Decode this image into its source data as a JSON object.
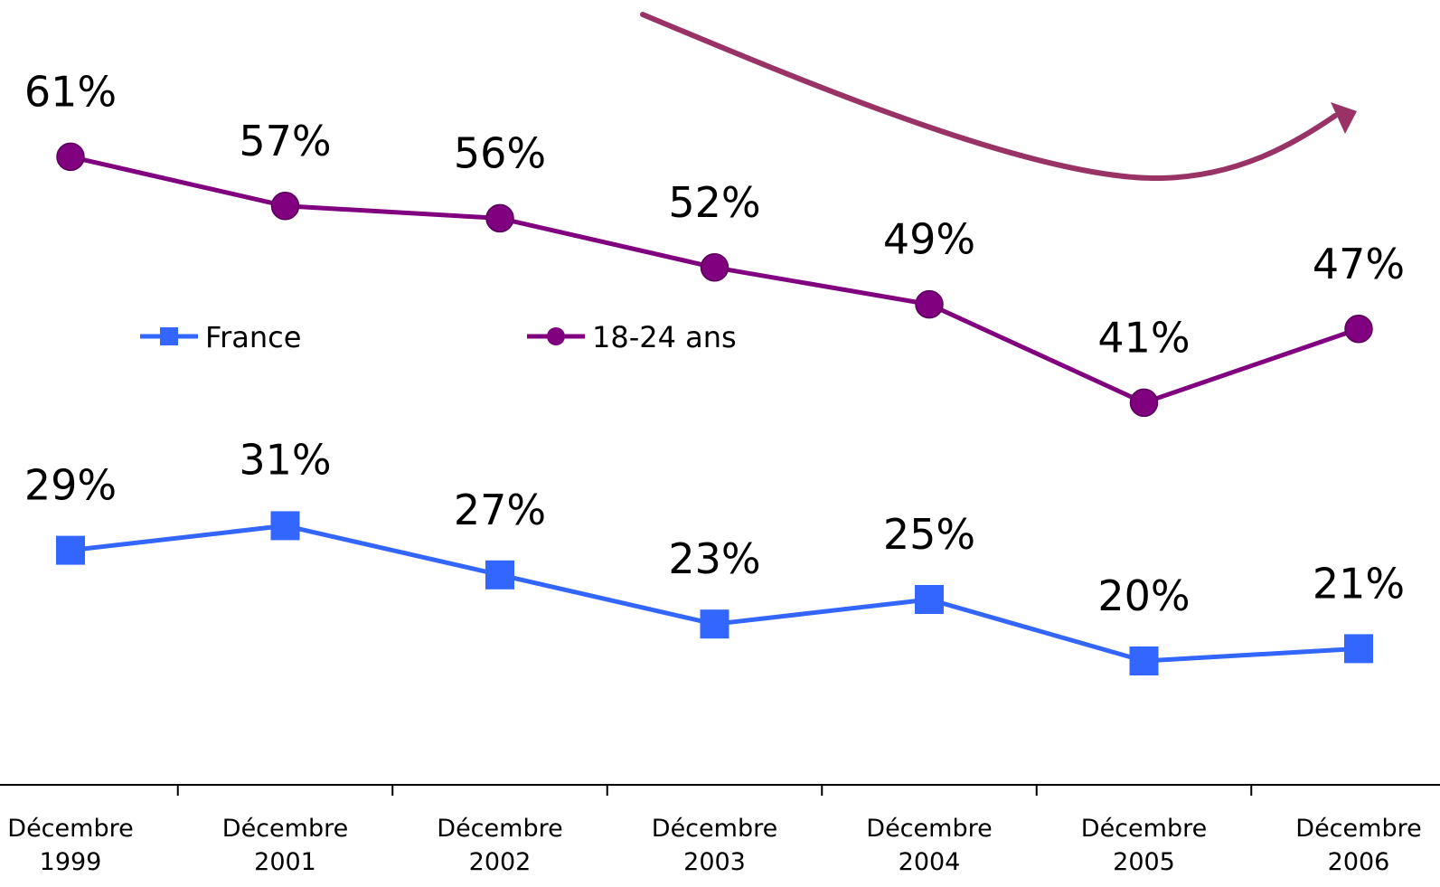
{
  "chart_data": {
    "type": "line",
    "title": "",
    "xlabel": "",
    "ylabel": "",
    "categories": [
      [
        "Décembre",
        "1999"
      ],
      [
        "Décembre",
        "2001"
      ],
      [
        "Décembre",
        "2002"
      ],
      [
        "Décembre",
        "2003"
      ],
      [
        "Décembre",
        "2004"
      ],
      [
        "Décembre",
        "2005"
      ],
      [
        "Décembre",
        "2006"
      ]
    ],
    "ylim": [
      0,
      70
    ],
    "grid": false,
    "legend_position": "middle-left",
    "series": [
      {
        "name": "France",
        "color": "#3366ff",
        "marker": "square",
        "values": [
          29,
          31,
          27,
          23,
          25,
          20,
          21
        ],
        "labels": [
          "29%",
          "31%",
          "27%",
          "23%",
          "25%",
          "20%",
          "21%"
        ]
      },
      {
        "name": "18-24 ans",
        "color": "#800080",
        "marker": "circle",
        "values": [
          61,
          57,
          56,
          52,
          49,
          41,
          47
        ],
        "labels": [
          "61%",
          "57%",
          "56%",
          "52%",
          "49%",
          "41%",
          "47%"
        ]
      }
    ],
    "annotation": {
      "type": "trend-arrow",
      "color": "#993366"
    }
  }
}
